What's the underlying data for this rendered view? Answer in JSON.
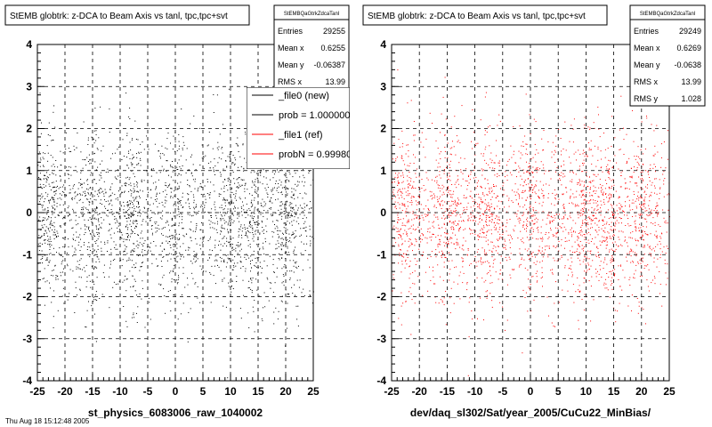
{
  "footer_text": "Thu Aug 18 15:12:48 2005",
  "chart_data": [
    {
      "type": "scatter",
      "title": "StEMB globtrk: z-DCA to Beam Axis vs tanl, tpc,tpc+svt",
      "xlabel": "st_physics_6083006_raw_1040002",
      "ylabel": "",
      "xlim": [
        -25,
        25
      ],
      "ylim": [
        -4,
        4
      ],
      "xticks": [
        "-25",
        "-20",
        "-15",
        "-10",
        "-5",
        "0",
        "5",
        "10",
        "15",
        "20",
        "25"
      ],
      "yticks": [
        "-4",
        "-3",
        "-2",
        "-1",
        "0",
        "1",
        "2",
        "3",
        "4"
      ],
      "grid": true,
      "marker_color": "#000000",
      "stats": {
        "name": "StEMBQaGtrkZdcaTanl",
        "rows": [
          {
            "label": "Entries",
            "value": "29255"
          },
          {
            "label": "Mean x",
            "value": "0.6255"
          },
          {
            "label": "Mean y",
            "value": "-0.06387"
          },
          {
            "label": "RMS x",
            "value": "13.99"
          }
        ]
      },
      "legend": {
        "placement": "top-right",
        "entries": [
          {
            "label": "_file0 (new)",
            "color": "#000000"
          },
          {
            "label": "prob = 1.000000",
            "color": "#000000"
          },
          {
            "label": "_file1 (ref)",
            "color": "#ff0000"
          },
          {
            "label": "probN = 0.999800",
            "color": "#ff0000"
          }
        ]
      }
    },
    {
      "type": "scatter",
      "title": "StEMB globtrk: z-DCA to Beam Axis vs tanl, tpc,tpc+svt",
      "xlabel": "dev/daq_sl302/Sat/year_2005/CuCu22_MinBias/",
      "ylabel": "",
      "xlim": [
        -25,
        25
      ],
      "ylim": [
        -4,
        4
      ],
      "xticks": [
        "-25",
        "-20",
        "-15",
        "-10",
        "-5",
        "0",
        "5",
        "10",
        "15",
        "20",
        "25"
      ],
      "yticks": [
        "-4",
        "-3",
        "-2",
        "-1",
        "0",
        "1",
        "2",
        "3",
        "4"
      ],
      "grid": true,
      "marker_color": "#ff0000",
      "stats": {
        "name": "StEMBQaGtrkZdcaTanl",
        "rows": [
          {
            "label": "Entries",
            "value": "29249"
          },
          {
            "label": "Mean x",
            "value": "0.6269"
          },
          {
            "label": "Mean y",
            "value": "-0.0638"
          },
          {
            "label": "RMS x",
            "value": "13.99"
          },
          {
            "label": "RMS y",
            "value": "1.028"
          }
        ]
      }
    }
  ]
}
